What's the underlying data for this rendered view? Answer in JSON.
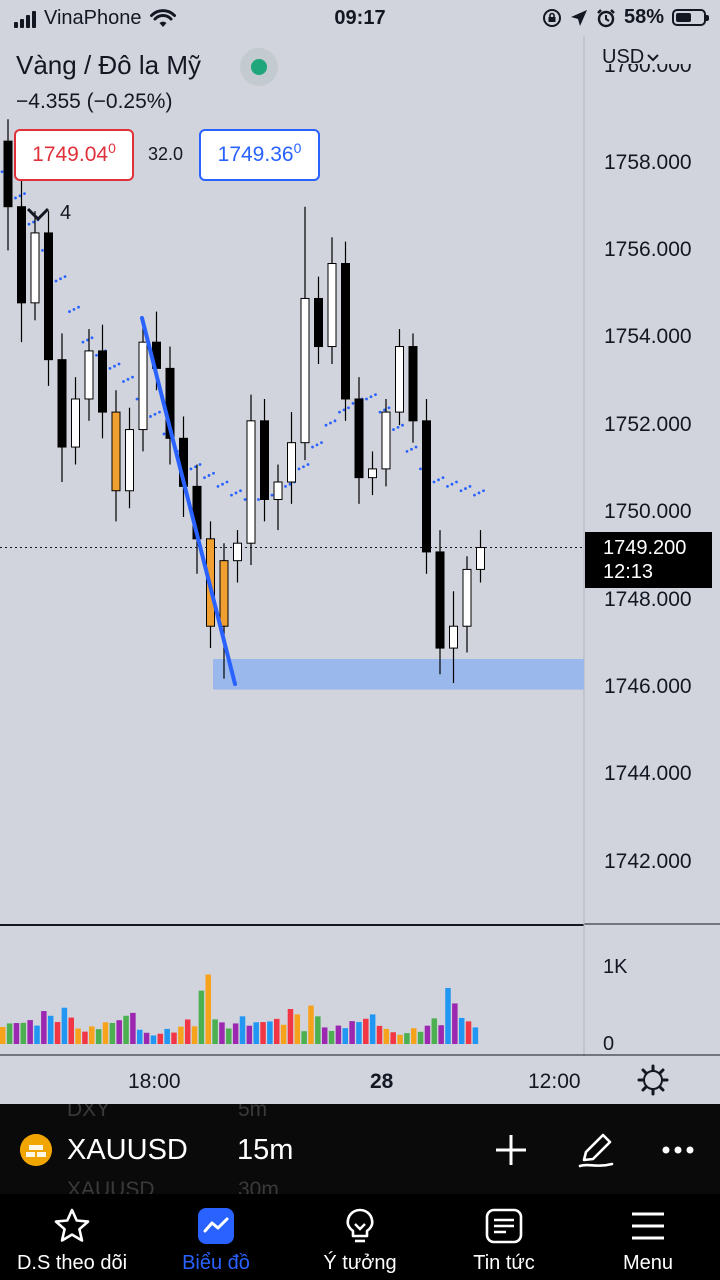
{
  "status_bar": {
    "carrier": "VinaPhone",
    "time": "09:17",
    "battery": "58%",
    "battery_level": 0.58
  },
  "header": {
    "title": "Vàng / Đô la Mỹ",
    "change": "−4.355 (−0.25%)",
    "currency": "USD",
    "bid": {
      "main": "1749.04",
      "sup": "0"
    },
    "spread": "32.0",
    "ask": {
      "main": "1749.36",
      "sup": "0"
    },
    "collapsed_indicators_count": "4"
  },
  "price_axis": {
    "top_partial": "1760.000",
    "labels": [
      "1758.000",
      "1756.000",
      "1754.000",
      "1752.000",
      "1750.000",
      "1748.000",
      "1746.000",
      "1744.000",
      "1742.000"
    ]
  },
  "current_price": {
    "value": "1749.200",
    "countdown": "12:13"
  },
  "volume_axis": {
    "labels": [
      "1K",
      "0"
    ]
  },
  "time_axis": {
    "labels": [
      "18:00",
      "28",
      "12:00"
    ]
  },
  "toolbar": {
    "symbol": "XAUUSD",
    "interval": "15m",
    "ghost_above": [
      "DXY",
      "5m"
    ],
    "ghost_below": [
      "XAUUSD",
      "30m"
    ]
  },
  "nav": [
    {
      "label": "D.S theo dõi",
      "icon": "star-icon"
    },
    {
      "label": "Biểu đồ",
      "icon": "chart-icon",
      "active": true
    },
    {
      "label": "Ý tưởng",
      "icon": "lightbulb-icon"
    },
    {
      "label": "Tin tức",
      "icon": "news-icon"
    },
    {
      "label": "Menu",
      "icon": "menu-icon"
    }
  ],
  "chart_data": {
    "type": "candlestick",
    "symbol": "XAUUSD",
    "interval": "15m",
    "ylim": [
      1741,
      1760
    ],
    "current_price": 1749.2,
    "support_zone": [
      1745.95,
      1746.65
    ],
    "candles": [
      [
        1758.5,
        1759.0,
        1756.0,
        1757.0
      ],
      [
        1757.0,
        1757.6,
        1753.9,
        1754.8
      ],
      [
        1754.8,
        1756.9,
        1754.4,
        1756.4
      ],
      [
        1756.4,
        1756.9,
        1752.9,
        1753.5
      ],
      [
        1753.5,
        1754.1,
        1750.7,
        1751.5
      ],
      [
        1751.5,
        1753.1,
        1751.1,
        1752.6
      ],
      [
        1752.6,
        1754.2,
        1752.1,
        1753.7
      ],
      [
        1753.7,
        1754.3,
        1751.7,
        1752.3
      ],
      [
        1752.3,
        1752.8,
        1749.8,
        1750.5
      ],
      [
        1750.5,
        1752.4,
        1750.1,
        1751.9
      ],
      [
        1751.9,
        1754.4,
        1751.4,
        1753.9
      ],
      [
        1753.9,
        1754.6,
        1752.8,
        1753.3
      ],
      [
        1753.3,
        1753.8,
        1751.1,
        1751.7
      ],
      [
        1751.7,
        1752.2,
        1749.9,
        1750.6
      ],
      [
        1750.6,
        1751.1,
        1748.6,
        1749.4
      ],
      [
        1749.4,
        1749.8,
        1746.9,
        1747.4
      ],
      [
        1747.4,
        1749.3,
        1746.2,
        1748.9
      ],
      [
        1748.9,
        1749.6,
        1748.4,
        1749.3
      ],
      [
        1749.3,
        1752.7,
        1748.8,
        1752.1
      ],
      [
        1752.1,
        1752.6,
        1749.8,
        1750.3
      ],
      [
        1750.3,
        1751.1,
        1749.6,
        1750.7
      ],
      [
        1750.7,
        1752.3,
        1750.2,
        1751.6
      ],
      [
        1751.6,
        1757.0,
        1751.2,
        1754.9
      ],
      [
        1754.9,
        1755.4,
        1753.4,
        1753.8
      ],
      [
        1753.8,
        1756.3,
        1753.4,
        1755.7
      ],
      [
        1755.7,
        1756.2,
        1752.1,
        1752.6
      ],
      [
        1752.6,
        1753.1,
        1750.2,
        1750.8
      ],
      [
        1750.8,
        1751.4,
        1750.4,
        1751.0
      ],
      [
        1751.0,
        1752.6,
        1750.6,
        1752.3
      ],
      [
        1752.3,
        1754.2,
        1752.0,
        1753.8
      ],
      [
        1753.8,
        1754.1,
        1751.6,
        1752.1
      ],
      [
        1752.1,
        1752.6,
        1748.6,
        1749.1
      ],
      [
        1749.1,
        1749.6,
        1746.3,
        1746.9
      ],
      [
        1746.9,
        1748.2,
        1746.1,
        1747.4
      ],
      [
        1747.4,
        1749.0,
        1746.8,
        1748.7
      ],
      [
        1748.7,
        1749.6,
        1748.4,
        1749.2
      ]
    ],
    "volume_ylim": [
      0,
      1350
    ]
  }
}
